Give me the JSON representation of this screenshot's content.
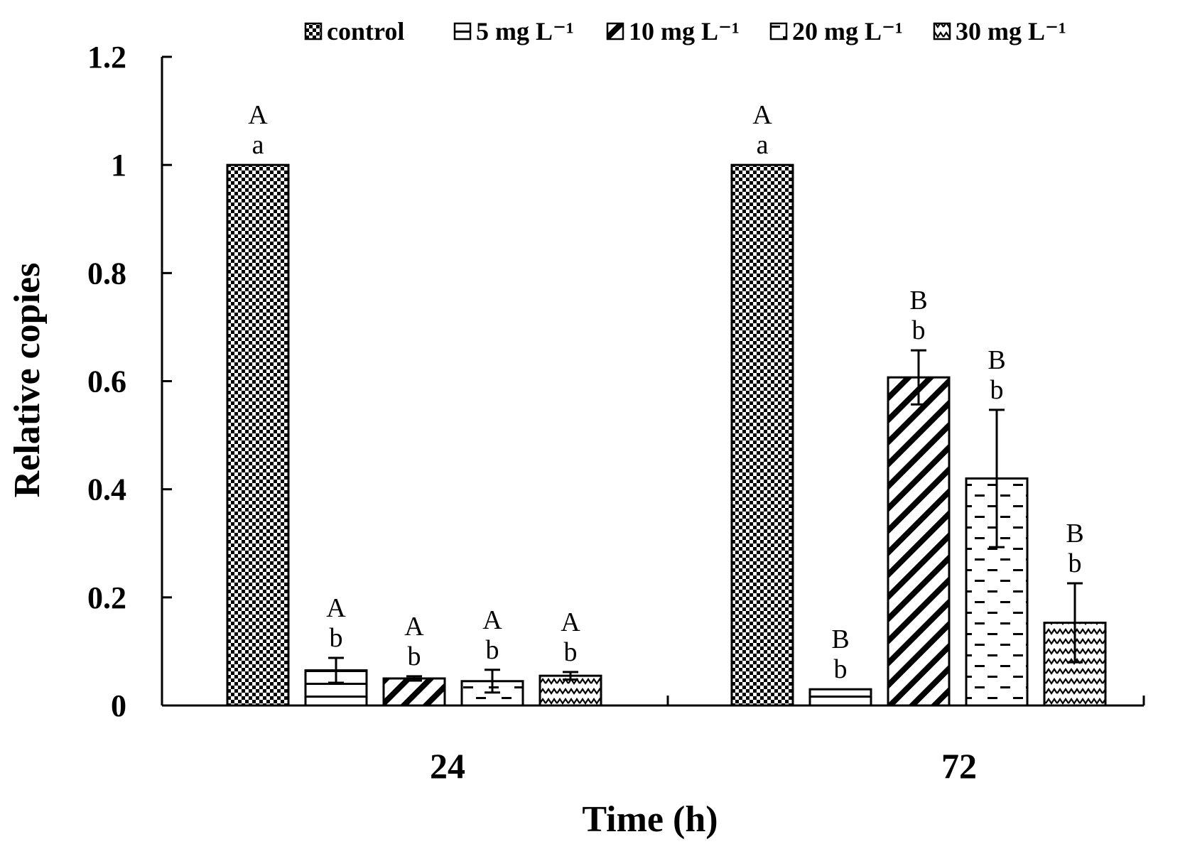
{
  "chart_data": {
    "type": "bar",
    "title": "",
    "xlabel": "Time (h)",
    "ylabel": "Relative copies",
    "ylim": [
      0,
      1.2
    ],
    "yticks": [
      0,
      0.2,
      0.4,
      0.6,
      0.8,
      1,
      1.2
    ],
    "ytick_labels": [
      "0",
      "0.2",
      "0.4",
      "0.6",
      "0.8",
      "1",
      "1.2"
    ],
    "categories": [
      "24",
      "72"
    ],
    "legend_position": "top",
    "series": [
      {
        "name": "control",
        "pattern": "checker",
        "values": [
          1.0,
          1.0
        ],
        "errors": [
          0,
          0
        ],
        "letters": [
          [
            "A",
            "a"
          ],
          [
            "A",
            "a"
          ]
        ]
      },
      {
        "name": "5 mg L⁻¹",
        "pattern": "hlines",
        "values": [
          0.065,
          0.03
        ],
        "errors": [
          0.023,
          0
        ],
        "letters": [
          [
            "A",
            "b"
          ],
          [
            "B",
            "b"
          ]
        ]
      },
      {
        "name": "10 mg L⁻¹",
        "pattern": "diag",
        "values": [
          0.05,
          0.607
        ],
        "errors": [
          0.004,
          0.05
        ],
        "letters": [
          [
            "A",
            "b"
          ],
          [
            "B",
            "b"
          ]
        ]
      },
      {
        "name": "20 mg L⁻¹",
        "pattern": "dash",
        "values": [
          0.045,
          0.42
        ],
        "errors": [
          0.021,
          0.127
        ],
        "letters": [
          [
            "A",
            "b"
          ],
          [
            "B",
            "b"
          ]
        ]
      },
      {
        "name": "30 mg L⁻¹",
        "pattern": "zigzag",
        "values": [
          0.055,
          0.153
        ],
        "errors": [
          0.007,
          0.073
        ],
        "letters": [
          [
            "A",
            "b"
          ],
          [
            "B",
            "b"
          ]
        ]
      }
    ]
  }
}
